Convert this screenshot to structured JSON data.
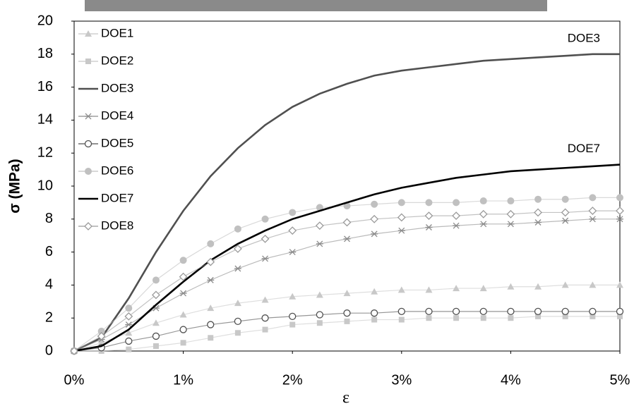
{
  "chart_data": {
    "type": "line",
    "y_label": "σ (MPa)",
    "x_label": "ε",
    "x": [
      0,
      0.25,
      0.5,
      0.75,
      1,
      1.25,
      1.5,
      1.75,
      2,
      2.25,
      2.5,
      2.75,
      3,
      3.25,
      3.5,
      3.75,
      4,
      4.25,
      4.5,
      4.75,
      5
    ],
    "xlim": [
      0,
      5
    ],
    "xticks": [
      {
        "value": 0,
        "label": "0%"
      },
      {
        "value": 1,
        "label": "1%"
      },
      {
        "value": 2,
        "label": "2%"
      },
      {
        "value": 3,
        "label": "3%"
      },
      {
        "value": 4,
        "label": "4%"
      },
      {
        "value": 5,
        "label": "5%"
      }
    ],
    "ylim": [
      0,
      20
    ],
    "yticks": [
      0,
      2,
      4,
      6,
      8,
      10,
      12,
      14,
      16,
      18,
      20
    ],
    "grid": false,
    "legend": "upper-left",
    "annotations": [
      "DOE3",
      "DOE7"
    ],
    "series": [
      {
        "name": "DOE1",
        "color": "#c8c8c8",
        "marker": "triangle",
        "values": [
          0,
          0.5,
          1.1,
          1.7,
          2.2,
          2.6,
          2.9,
          3.1,
          3.3,
          3.4,
          3.5,
          3.6,
          3.7,
          3.7,
          3.8,
          3.8,
          3.9,
          3.9,
          4.0,
          4.0,
          4.0
        ]
      },
      {
        "name": "DOE2",
        "color": "#c8c8c8",
        "marker": "square",
        "values": [
          0,
          0,
          0.1,
          0.3,
          0.5,
          0.8,
          1.1,
          1.3,
          1.6,
          1.7,
          1.8,
          1.9,
          1.9,
          2.0,
          2.0,
          2.0,
          2.0,
          2.1,
          2.1,
          2.1,
          2.1
        ]
      },
      {
        "name": "DOE3",
        "color": "#505050",
        "marker": "none",
        "values": [
          0,
          0.8,
          3.2,
          6.0,
          8.5,
          10.6,
          12.3,
          13.7,
          14.8,
          15.6,
          16.2,
          16.7,
          17.0,
          17.2,
          17.4,
          17.6,
          17.7,
          17.8,
          17.9,
          18.0,
          18.0
        ]
      },
      {
        "name": "DOE4",
        "color": "#8c8c8c",
        "marker": "star",
        "values": [
          0,
          0.7,
          1.6,
          2.6,
          3.5,
          4.3,
          5.0,
          5.6,
          6.0,
          6.5,
          6.8,
          7.1,
          7.3,
          7.5,
          7.6,
          7.7,
          7.7,
          7.8,
          7.9,
          8.0,
          8.0
        ]
      },
      {
        "name": "DOE5",
        "color": "#505050",
        "marker": "open-circle",
        "values": [
          0,
          0.2,
          0.6,
          0.9,
          1.3,
          1.6,
          1.8,
          2.0,
          2.1,
          2.2,
          2.3,
          2.3,
          2.4,
          2.4,
          2.4,
          2.4,
          2.4,
          2.4,
          2.4,
          2.4,
          2.4
        ]
      },
      {
        "name": "DOE6",
        "color": "#c0c0c0",
        "marker": "circle",
        "values": [
          0,
          1.2,
          2.6,
          4.3,
          5.5,
          6.5,
          7.4,
          8.0,
          8.4,
          8.7,
          8.8,
          8.9,
          9.0,
          9.0,
          9.0,
          9.1,
          9.1,
          9.2,
          9.2,
          9.3,
          9.3
        ]
      },
      {
        "name": "DOE7",
        "color": "#000000",
        "marker": "none",
        "values": [
          0,
          0.3,
          1.3,
          2.8,
          4.2,
          5.5,
          6.5,
          7.3,
          8.0,
          8.5,
          9.0,
          9.5,
          9.9,
          10.2,
          10.5,
          10.7,
          10.9,
          11.0,
          11.1,
          11.2,
          11.3
        ]
      },
      {
        "name": "DOE8",
        "color": "#9a9a9a",
        "marker": "open-diamond",
        "values": [
          0,
          0.9,
          2.1,
          3.4,
          4.5,
          5.4,
          6.2,
          6.8,
          7.3,
          7.6,
          7.8,
          8.0,
          8.1,
          8.2,
          8.2,
          8.3,
          8.3,
          8.4,
          8.4,
          8.5,
          8.5
        ]
      }
    ]
  }
}
